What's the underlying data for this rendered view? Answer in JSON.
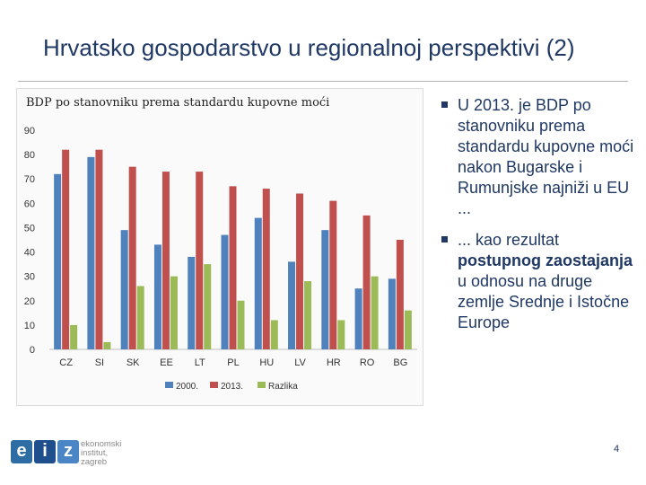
{
  "slide": {
    "title": "Hrvatsko gospodarstvo u regionalnoj perspektivi (2)",
    "page_number": "4"
  },
  "bullets": [
    {
      "parts": [
        {
          "text": "U 2013. je BDP po stanovniku prema standardu kupovne moći nakon Bugarske i Rumunjske najniži u EU ...",
          "bold": false
        }
      ]
    },
    {
      "parts": [
        {
          "text": "... kao rezultat ",
          "bold": false
        },
        {
          "text": "postupnog zaostajanja",
          "bold": true
        },
        {
          "text": " u odnosu na druge zemlje Srednje i Istočne Europe",
          "bold": false
        }
      ]
    }
  ],
  "logo": {
    "letters": [
      "e",
      "i",
      "z"
    ],
    "line1": "ekonomski",
    "line2": "institut,",
    "line3": "zagreb",
    "colors": [
      "#2e6da4",
      "#1f4e8c",
      "#4a86c5"
    ]
  },
  "colors": {
    "series_2000": "#4f81bd",
    "series_2013": "#c0504d",
    "series_razlika": "#9bbb59",
    "title": "#1f3864"
  },
  "chart_data": {
    "type": "bar",
    "title": "BDP po stanovniku prema standardu kupovne moći",
    "categories": [
      "CZ",
      "SI",
      "SK",
      "EE",
      "LT",
      "PL",
      "HU",
      "LV",
      "HR",
      "RO",
      "BG"
    ],
    "series": [
      {
        "name": "2000.",
        "values": [
          72,
          79,
          49,
          43,
          38,
          47,
          54,
          36,
          49,
          25,
          29
        ]
      },
      {
        "name": "2013.",
        "values": [
          82,
          82,
          75,
          73,
          73,
          67,
          66,
          64,
          61,
          55,
          45
        ]
      },
      {
        "name": "Razlika",
        "values": [
          10,
          3,
          26,
          30,
          35,
          20,
          12,
          28,
          12,
          30,
          16
        ]
      }
    ],
    "yticks": [
      "0",
      "10",
      "20",
      "30",
      "40",
      "50",
      "60",
      "70",
      "80",
      "90"
    ],
    "ylim": [
      0,
      90
    ],
    "xlabel": "",
    "ylabel": "",
    "legend_position": "bottom"
  }
}
